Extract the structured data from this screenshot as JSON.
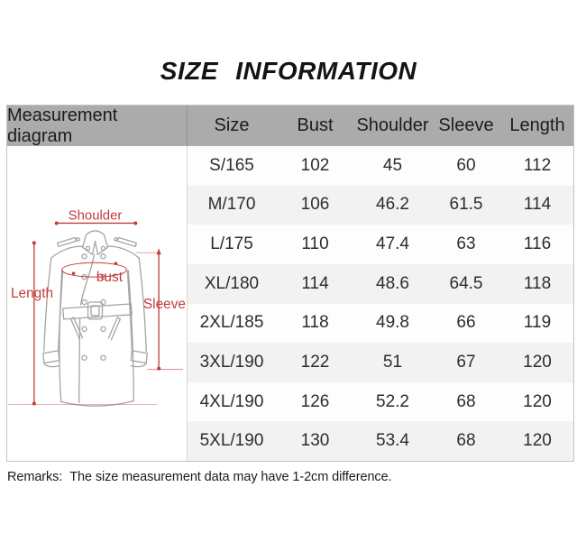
{
  "title": "SIZE INFORMATION",
  "size_table": {
    "diagram_header": "Measurement diagram",
    "columns": [
      "Size",
      "Bust",
      "Shoulder",
      "Sleeve",
      "Length"
    ],
    "rows": [
      [
        "S/165",
        "102",
        "45",
        "60",
        "112"
      ],
      [
        "M/170",
        "106",
        "46.2",
        "61.5",
        "114"
      ],
      [
        "L/175",
        "110",
        "47.4",
        "63",
        "116"
      ],
      [
        "XL/180",
        "114",
        "48.6",
        "64.5",
        "118"
      ],
      [
        "2XL/185",
        "118",
        "49.8",
        "66",
        "119"
      ],
      [
        "3XL/190",
        "122",
        "51",
        "67",
        "120"
      ],
      [
        "4XL/190",
        "126",
        "52.2",
        "68",
        "120"
      ],
      [
        "5XL/190",
        "130",
        "53.4",
        "68",
        "120"
      ]
    ]
  },
  "diagram": {
    "labels": {
      "shoulder": "Shoulder",
      "length": "Length",
      "bust": "bust",
      "sleeve": "Sleeve"
    }
  },
  "remarks": {
    "label": "Remarks:",
    "text": "The size measurement data may have 1-2cm difference."
  },
  "colors": {
    "header_bg": "#ababab",
    "row_alt": "#f2f2f2",
    "table_border": "#c4c4c4",
    "annotation_red": "#c23b3c",
    "coat_outline": "#a4a4a4"
  }
}
